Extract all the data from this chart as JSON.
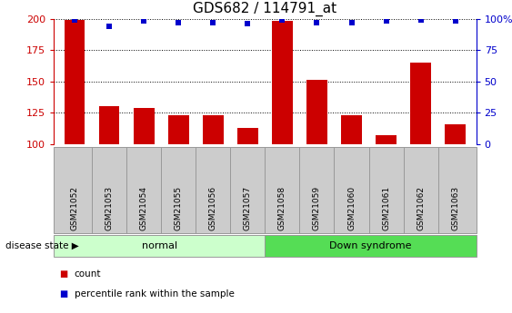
{
  "title": "GDS682 / 114791_at",
  "samples": [
    "GSM21052",
    "GSM21053",
    "GSM21054",
    "GSM21055",
    "GSM21056",
    "GSM21057",
    "GSM21058",
    "GSM21059",
    "GSM21060",
    "GSM21061",
    "GSM21062",
    "GSM21063"
  ],
  "count_values": [
    199,
    130,
    129,
    123,
    123,
    113,
    198,
    151,
    123,
    107,
    165,
    116
  ],
  "percentile_values": [
    99,
    94,
    98,
    97,
    97,
    96,
    99,
    97,
    97,
    98,
    99,
    98
  ],
  "bar_color": "#cc0000",
  "dot_color": "#0000cc",
  "ylim_left": [
    100,
    200
  ],
  "ylim_right": [
    0,
    100
  ],
  "yticks_left": [
    100,
    125,
    150,
    175,
    200
  ],
  "yticks_right": [
    0,
    25,
    50,
    75,
    100
  ],
  "normal_indices": [
    0,
    1,
    2,
    3,
    4,
    5
  ],
  "down_indices": [
    6,
    7,
    8,
    9,
    10,
    11
  ],
  "normal_label": "normal",
  "down_label": "Down syndrome",
  "normal_color": "#ccffcc",
  "down_color": "#55dd55",
  "xtick_bg_color": "#cccccc",
  "xtick_border_color": "#999999",
  "disease_state_label": "disease state",
  "legend_count": "count",
  "legend_pct": "percentile rank within the sample",
  "bar_width": 0.6,
  "fig_width": 5.63,
  "fig_height": 3.45,
  "dpi": 100
}
